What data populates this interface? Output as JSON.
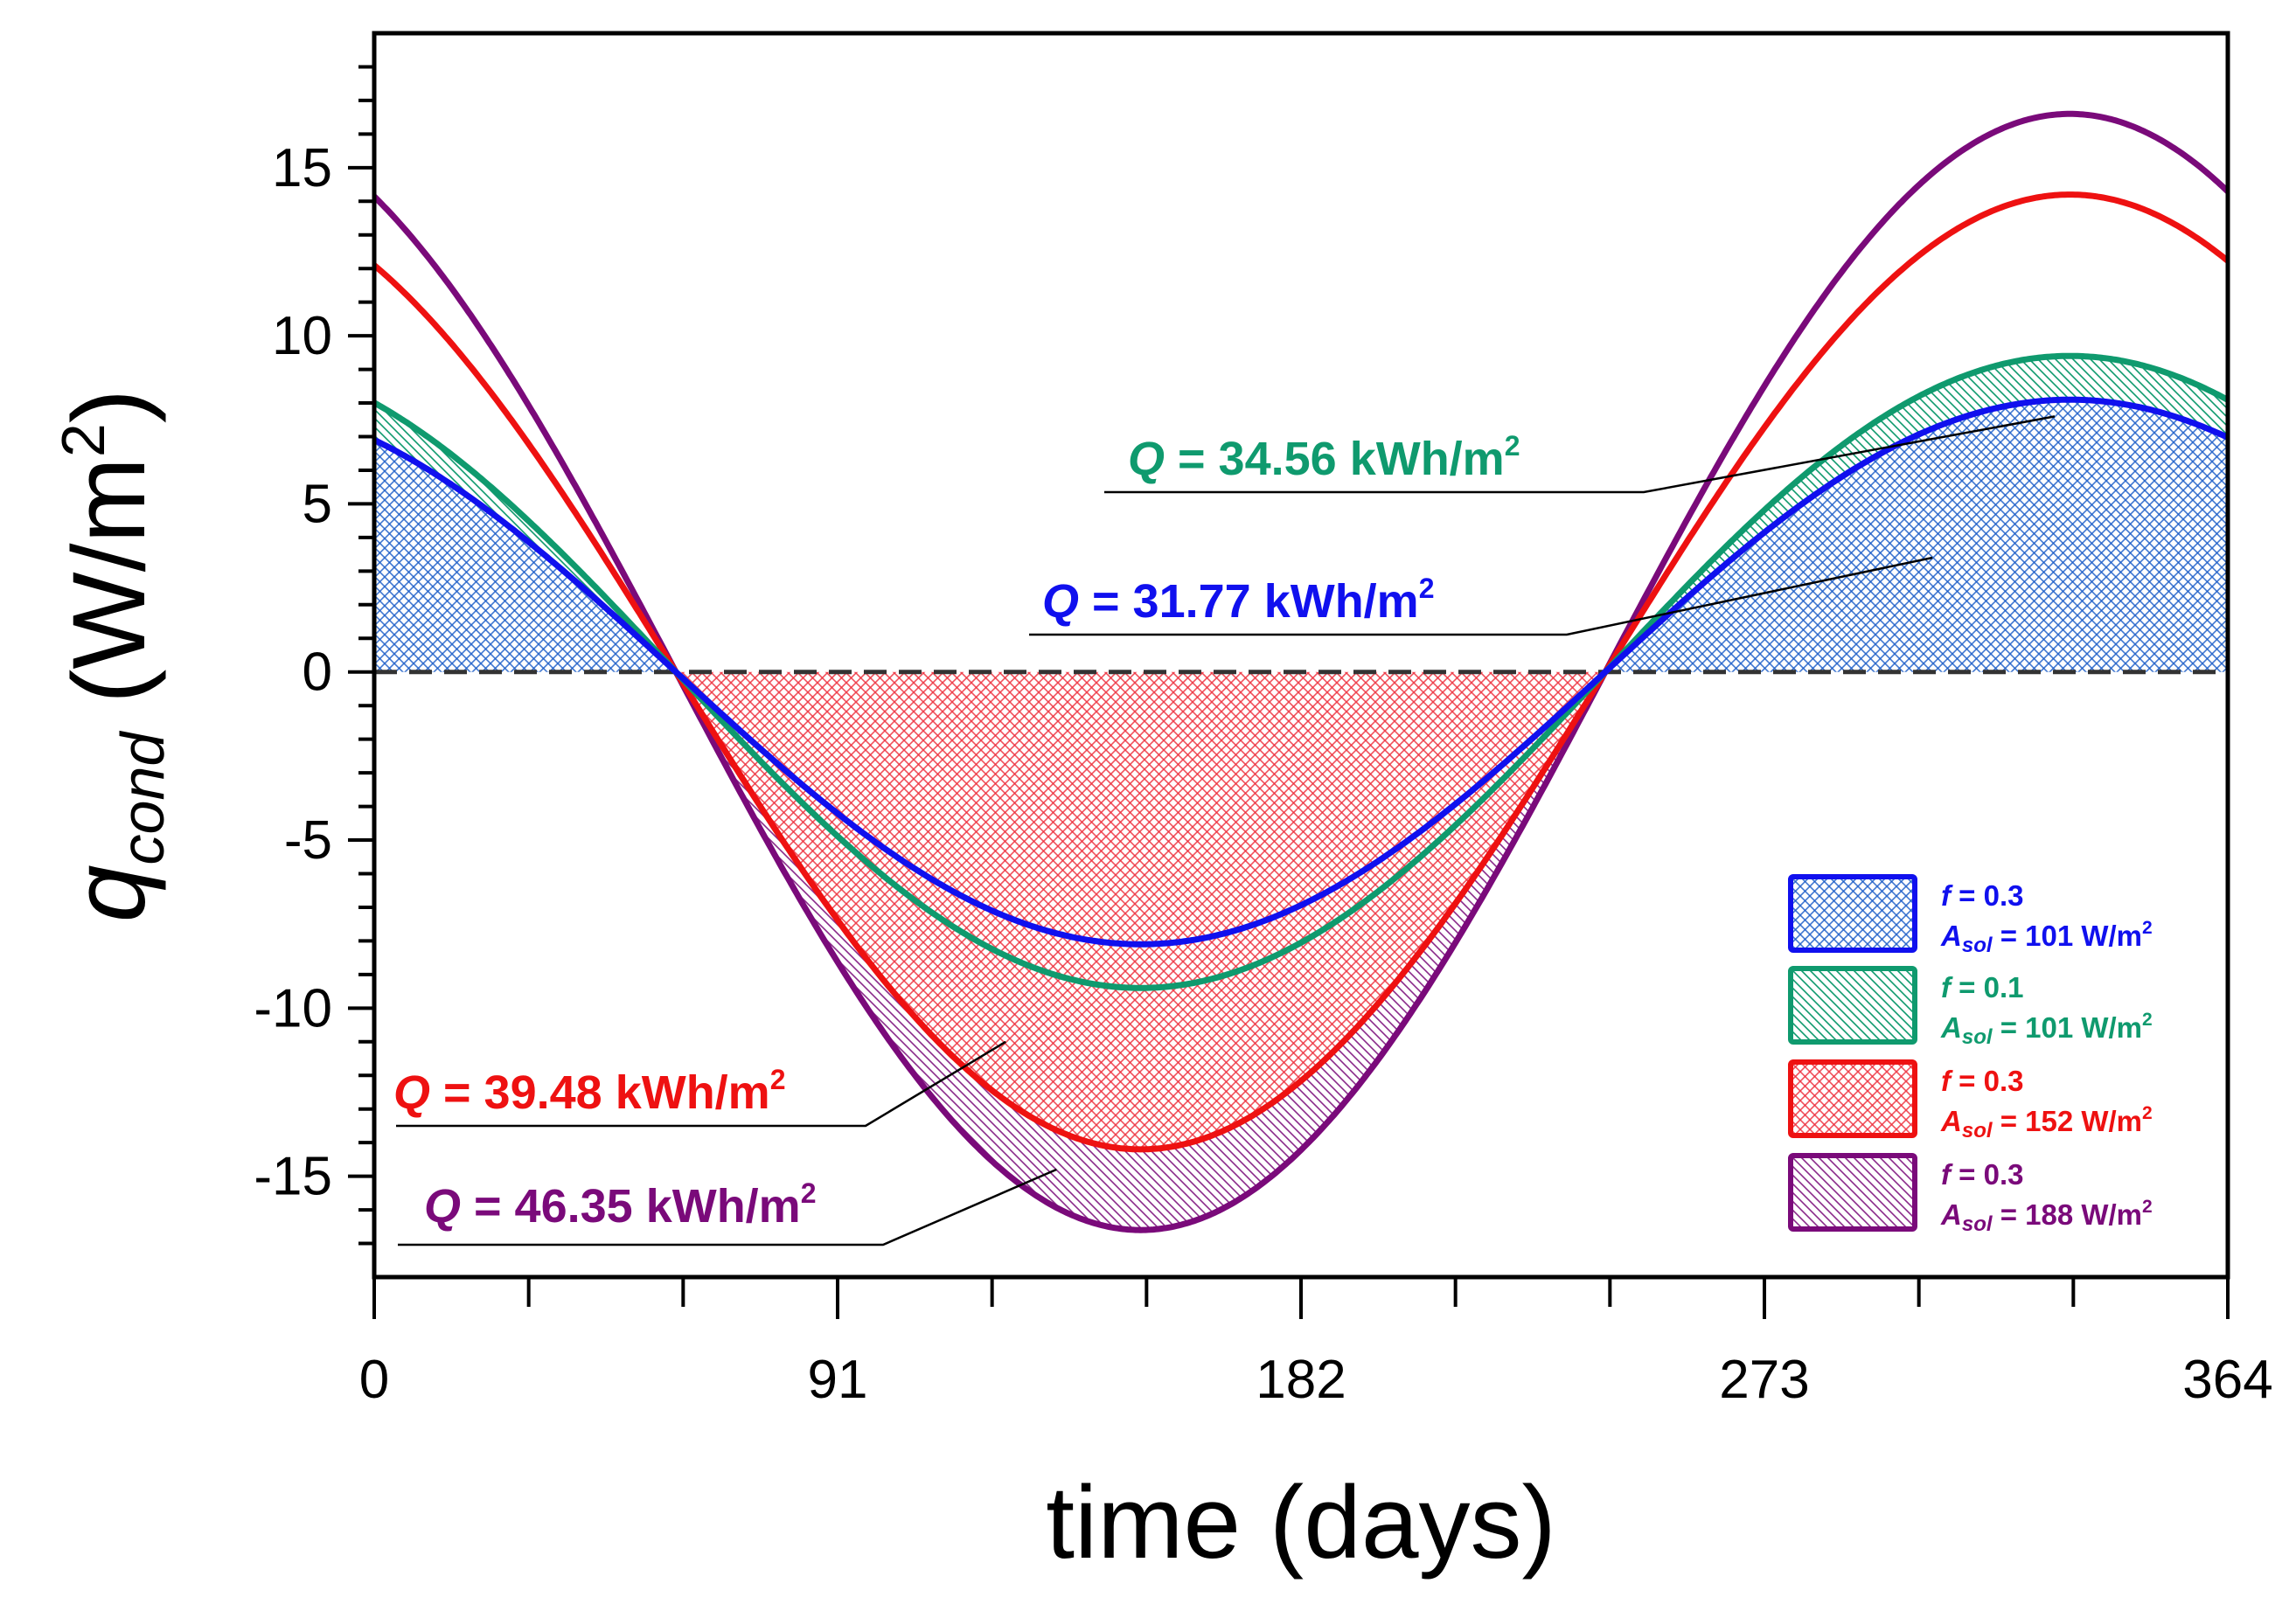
{
  "chart_data": {
    "type": "line",
    "xlabel": "time (days)",
    "ylabel": {
      "base": "q",
      "sub": "cond",
      "unit_open": " (W/m",
      "unit_sup": "2",
      "unit_close": ")"
    },
    "xlim": [
      0,
      364
    ],
    "ylim": [
      -18,
      19
    ],
    "x_ticks": [
      0,
      91,
      182,
      273,
      364
    ],
    "x_tick_labels": [
      "0",
      "91",
      "182",
      "273",
      "364"
    ],
    "y_ticks": [
      -15,
      -10,
      -5,
      0,
      5,
      10,
      15
    ],
    "y_tick_labels": [
      "-15",
      "-10",
      "-5",
      "0",
      "5",
      "10",
      "15"
    ],
    "zero_line": "dashed",
    "series": [
      {
        "key": "blue",
        "name": "f = 0.3, A_sol = 101 W/m2",
        "color": "#1010ee",
        "amplitude": 8.1,
        "peak_day": 333,
        "fill": "positive",
        "hatch": "cross"
      },
      {
        "key": "green",
        "name": "f = 0.1, A_sol = 101 W/m2",
        "color": "#0f9a6e",
        "amplitude": 9.4,
        "peak_day": 333,
        "fill": "positive_band",
        "hatch": "diagonal"
      },
      {
        "key": "red",
        "name": "f = 0.3, A_sol = 152 W/m2",
        "color": "#ee1111",
        "amplitude": 14.2,
        "peak_day": 333,
        "fill": "negative",
        "hatch": "cross"
      },
      {
        "key": "purple",
        "name": "f = 0.3, A_sol = 188 W/m2",
        "color": "#7a0a7a",
        "amplitude": 16.6,
        "peak_day": 333,
        "fill": "negative_band",
        "hatch": "diagonal"
      }
    ],
    "annotations": [
      {
        "series": "green",
        "prefix": "Q",
        "text": " = 34.56 kWh/m",
        "sup": "2",
        "color": "#0f9a6e",
        "point_x": 330,
        "point_y": 7.6
      },
      {
        "series": "blue",
        "prefix": "Q",
        "text": " = 31.77 kWh/m",
        "sup": "2",
        "color": "#1010ee",
        "point_x": 306,
        "point_y": 3.4
      },
      {
        "series": "red",
        "prefix": "Q",
        "text": " = 39.48 kWh/m",
        "sup": "2",
        "color": "#ee1111",
        "point_x": 124,
        "point_y": -11
      },
      {
        "series": "purple",
        "prefix": "Q",
        "text": " = 46.35 kWh/m",
        "sup": "2",
        "color": "#7a0a7a",
        "point_x": 134,
        "point_y": -14.8
      }
    ],
    "legend": {
      "position": "bottom-right",
      "entries": [
        {
          "series": "blue",
          "f_label": "f",
          "f_value": " = 0.3",
          "a_label": "A",
          "a_sub": "sol",
          "a_value": " = 101 W/m",
          "a_sup": "2"
        },
        {
          "series": "green",
          "f_label": "f",
          "f_value": " = 0.1",
          "a_label": "A",
          "a_sub": "sol",
          "a_value": " = 101 W/m",
          "a_sup": "2"
        },
        {
          "series": "red",
          "f_label": "f",
          "f_value": " = 0.3",
          "a_label": "A",
          "a_sub": "sol",
          "a_value": " = 152 W/m",
          "a_sup": "2"
        },
        {
          "series": "purple",
          "f_label": "f",
          "f_value": " = 0.3",
          "a_label": "A",
          "a_sub": "sol",
          "a_value": " = 188 W/m",
          "a_sup": "2"
        }
      ]
    }
  }
}
